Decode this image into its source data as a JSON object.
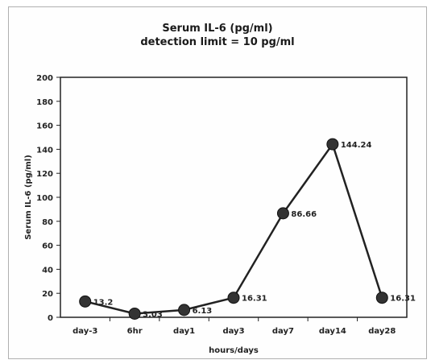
{
  "chart_data": {
    "type": "line",
    "title": "Serum IL-6 (pg/ml)",
    "subtitle": "detection limit = 10 pg/ml",
    "xlabel": "hours/days",
    "ylabel": "Serum IL-6 (pg/ml)",
    "ylim": [
      0,
      200
    ],
    "yticks": [
      0,
      20,
      40,
      60,
      80,
      100,
      120,
      140,
      160,
      180,
      200
    ],
    "categories": [
      "day-3",
      "6hr",
      "day1",
      "day3",
      "day7",
      "day14",
      "day28"
    ],
    "values": [
      13.2,
      3.03,
      6.13,
      16.31,
      86.66,
      144.24,
      16.31
    ],
    "data_labels": [
      "13.2",
      "3.03",
      "6.13",
      "16.31",
      "86.66",
      "144.24",
      "16.31"
    ],
    "grid": false,
    "line_color": "#222222",
    "marker_color": "#333333"
  }
}
